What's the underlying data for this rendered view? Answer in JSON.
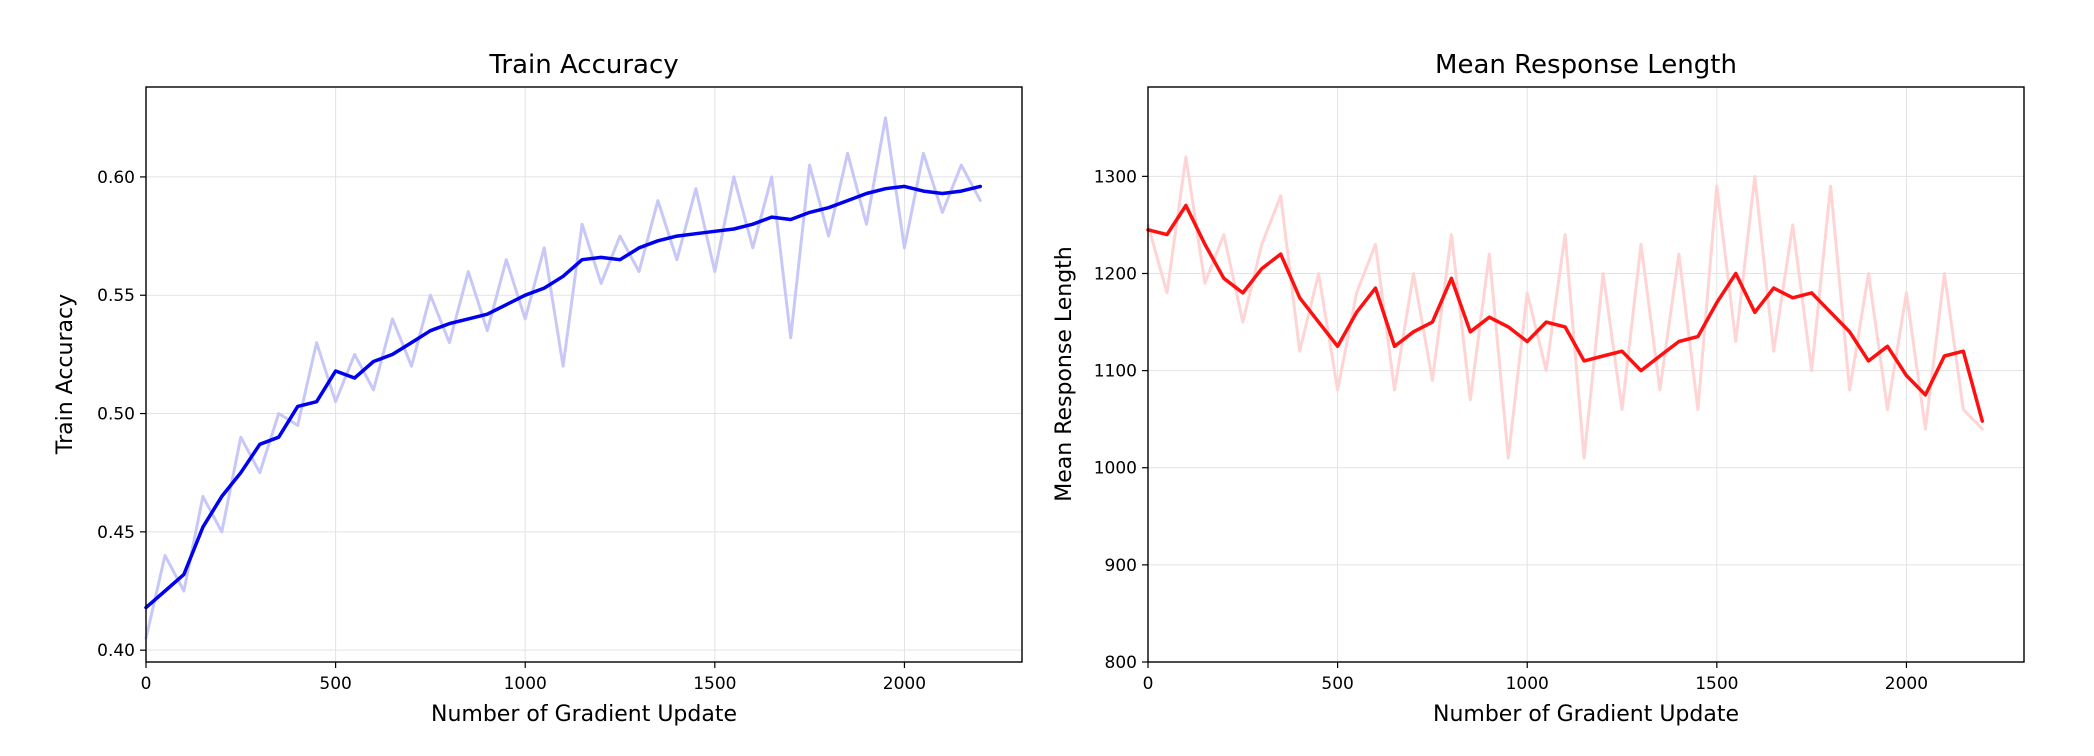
{
  "chart_data": [
    {
      "type": "line",
      "title": "Train Accuracy",
      "xlabel": "Number of Gradient Update",
      "ylabel": "Train Accuracy",
      "xlim": [
        0,
        2310
      ],
      "ylim": [
        0.395,
        0.638
      ],
      "xticks": [
        0,
        500,
        1000,
        1500,
        2000
      ],
      "yticks": [
        0.4,
        0.45,
        0.5,
        0.55,
        0.6
      ],
      "xtick_labels": [
        "0",
        "500",
        "1000",
        "1500",
        "2000"
      ],
      "ytick_labels": [
        "0.40",
        "0.45",
        "0.50",
        "0.55",
        "0.60"
      ],
      "grid": true,
      "colors": {
        "smoothed": "#0000ee",
        "raw": "#c8c8f8"
      },
      "series": [
        {
          "role": "smoothed",
          "x": [
            0,
            50,
            100,
            150,
            200,
            250,
            300,
            350,
            400,
            450,
            500,
            550,
            600,
            650,
            700,
            750,
            800,
            850,
            900,
            950,
            1000,
            1050,
            1100,
            1150,
            1200,
            1250,
            1300,
            1350,
            1400,
            1450,
            1500,
            1550,
            1600,
            1650,
            1700,
            1750,
            1800,
            1850,
            1900,
            1950,
            2000,
            2050,
            2100,
            2150,
            2200
          ],
          "y": [
            0.418,
            0.425,
            0.432,
            0.452,
            0.465,
            0.475,
            0.487,
            0.49,
            0.503,
            0.505,
            0.518,
            0.515,
            0.522,
            0.525,
            0.53,
            0.535,
            0.538,
            0.54,
            0.542,
            0.546,
            0.55,
            0.553,
            0.558,
            0.565,
            0.566,
            0.565,
            0.57,
            0.573,
            0.575,
            0.576,
            0.577,
            0.578,
            0.58,
            0.583,
            0.582,
            0.585,
            0.587,
            0.59,
            0.593,
            0.595,
            0.596,
            0.594,
            0.593,
            0.594,
            0.596
          ]
        },
        {
          "role": "raw",
          "x": [
            0,
            50,
            100,
            150,
            200,
            250,
            300,
            350,
            400,
            450,
            500,
            550,
            600,
            650,
            700,
            750,
            800,
            850,
            900,
            950,
            1000,
            1050,
            1100,
            1150,
            1200,
            1250,
            1300,
            1350,
            1400,
            1450,
            1500,
            1550,
            1600,
            1650,
            1700,
            1750,
            1800,
            1850,
            1900,
            1950,
            2000,
            2050,
            2100,
            2150,
            2200
          ],
          "y": [
            0.405,
            0.44,
            0.425,
            0.465,
            0.45,
            0.49,
            0.475,
            0.5,
            0.495,
            0.53,
            0.505,
            0.525,
            0.51,
            0.54,
            0.52,
            0.55,
            0.53,
            0.56,
            0.535,
            0.565,
            0.54,
            0.57,
            0.52,
            0.58,
            0.555,
            0.575,
            0.56,
            0.59,
            0.565,
            0.595,
            0.56,
            0.6,
            0.57,
            0.6,
            0.532,
            0.605,
            0.575,
            0.61,
            0.58,
            0.625,
            0.57,
            0.61,
            0.585,
            0.605,
            0.59
          ]
        }
      ]
    },
    {
      "type": "line",
      "title": "Mean Response Length",
      "xlabel": "Number of Gradient Update",
      "ylabel": "Mean Response Length",
      "xlim": [
        0,
        2310
      ],
      "ylim": [
        800,
        1392
      ],
      "xticks": [
        0,
        500,
        1000,
        1500,
        2000
      ],
      "yticks": [
        800,
        900,
        1000,
        1100,
        1200,
        1300
      ],
      "xtick_labels": [
        "0",
        "500",
        "1000",
        "1500",
        "2000"
      ],
      "ytick_labels": [
        "800",
        "900",
        "1000",
        "1100",
        "1200",
        "1300"
      ],
      "grid": true,
      "colors": {
        "smoothed": "#ff1010",
        "raw": "#ffd4d4"
      },
      "series": [
        {
          "role": "smoothed",
          "x": [
            0,
            50,
            100,
            150,
            200,
            250,
            300,
            350,
            400,
            450,
            500,
            550,
            600,
            650,
            700,
            750,
            800,
            850,
            900,
            950,
            1000,
            1050,
            1100,
            1150,
            1200,
            1250,
            1300,
            1350,
            1400,
            1450,
            1500,
            1550,
            1600,
            1650,
            1700,
            1750,
            1800,
            1850,
            1900,
            1950,
            2000,
            2050,
            2100,
            2150,
            2200
          ],
          "y": [
            1245,
            1240,
            1270,
            1230,
            1195,
            1180,
            1205,
            1220,
            1175,
            1150,
            1125,
            1160,
            1185,
            1125,
            1140,
            1150,
            1195,
            1140,
            1155,
            1145,
            1130,
            1150,
            1145,
            1110,
            1115,
            1120,
            1100,
            1115,
            1130,
            1135,
            1170,
            1200,
            1160,
            1185,
            1175,
            1180,
            1160,
            1140,
            1110,
            1125,
            1095,
            1075,
            1115,
            1120,
            1048
          ]
        },
        {
          "role": "raw",
          "x": [
            0,
            50,
            100,
            150,
            200,
            250,
            300,
            350,
            400,
            450,
            500,
            550,
            600,
            650,
            700,
            750,
            800,
            850,
            900,
            950,
            1000,
            1050,
            1100,
            1150,
            1200,
            1250,
            1300,
            1350,
            1400,
            1450,
            1500,
            1550,
            1600,
            1650,
            1700,
            1750,
            1800,
            1850,
            1900,
            1950,
            2000,
            2050,
            2100,
            2150,
            2200
          ],
          "y": [
            1250,
            1180,
            1320,
            1190,
            1240,
            1150,
            1230,
            1280,
            1120,
            1200,
            1080,
            1180,
            1230,
            1080,
            1200,
            1090,
            1240,
            1070,
            1220,
            1010,
            1180,
            1100,
            1240,
            1010,
            1200,
            1060,
            1230,
            1080,
            1220,
            1060,
            1290,
            1130,
            1300,
            1120,
            1250,
            1100,
            1290,
            1080,
            1200,
            1060,
            1180,
            1040,
            1200,
            1060,
            1040
          ]
        }
      ]
    }
  ]
}
